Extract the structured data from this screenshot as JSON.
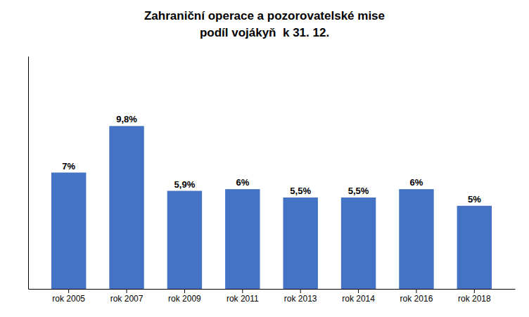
{
  "chart_data": {
    "type": "bar",
    "title": "Zahraniční operace a pozorovatelské mise",
    "subtitle": "podíl vojákyň  k 31. 12.",
    "categories": [
      "rok 2005",
      "rok 2007",
      "rok 2009",
      "rok 2011",
      "rok 2013",
      "rok 2014",
      "rok 2016",
      "rok 2018"
    ],
    "values": [
      7.0,
      9.8,
      5.9,
      6.0,
      5.5,
      5.5,
      6.0,
      5.0
    ],
    "value_labels": [
      "7%",
      "9,8%",
      "5,9%",
      "6%",
      "5,5%",
      "5,5%",
      "6%",
      "5%"
    ],
    "data_labels": true,
    "color": "#4472C4",
    "ylim": [
      0,
      14
    ],
    "yticks": [],
    "tick_labels": "x",
    "grid": false
  }
}
